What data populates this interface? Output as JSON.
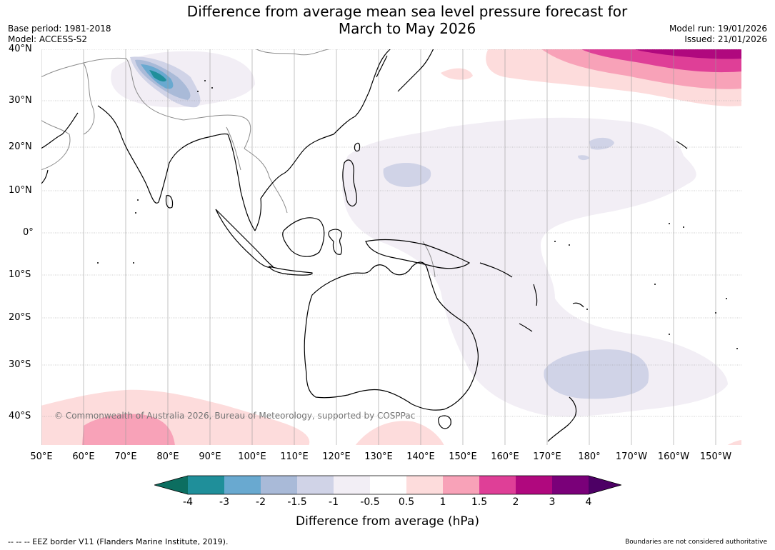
{
  "title_line1": "Difference from average mean sea level pressure forecast for",
  "title_line2": "March to May 2026",
  "base_period": "Base period: 1981-2018",
  "model": "Model: ACCESS-S2",
  "model_run": "Model run: 19/01/2026",
  "issued": "Issued: 21/01/2026",
  "lat_labels": [
    "40°N",
    "30°N",
    "20°N",
    "10°N",
    "0°",
    "10°S",
    "20°S",
    "30°S",
    "40°S"
  ],
  "lon_labels": [
    "50°E",
    "60°E",
    "70°E",
    "80°E",
    "90°E",
    "100°E",
    "110°E",
    "120°E",
    "130°E",
    "140°E",
    "150°E",
    "160°E",
    "170°E",
    "180°",
    "170°W",
    "160°W",
    "150°W"
  ],
  "copyright": "© Commonwealth of Australia 2026, Bureau of Meteorology, supported by COSPPac",
  "colorbar": {
    "ticks": [
      "-4",
      "-3",
      "-2",
      "-1.5",
      "-1",
      "-0.5",
      "0.5",
      "1",
      "1.5",
      "2",
      "3",
      "4"
    ],
    "colors": [
      "#0c6e60",
      "#1f8f9a",
      "#69a9d0",
      "#a9bad8",
      "#d0d3e7",
      "#f2eef5",
      "#ffffff",
      "#fddcdc",
      "#f8a2b8",
      "#df3f97",
      "#b0087e",
      "#7a0079",
      "#4d0065"
    ],
    "title": "Difference from average (hPa)"
  },
  "footer_left": "--  --  -- EEZ border V11 (Flanders Marine Institute, 2019).",
  "footer_right": "Boundaries are not considered authoritative"
}
